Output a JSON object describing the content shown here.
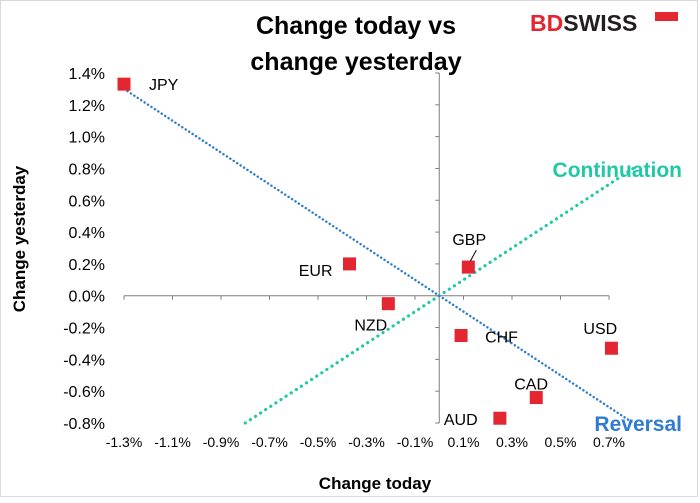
{
  "title_lines": [
    "Change today vs",
    "change yesterday"
  ],
  "logo": {
    "text_a": "BD",
    "text_b": "SWISS",
    "color_a": "#e3262f",
    "color_b": "#231f20"
  },
  "colors": {
    "marker": "#e3262f",
    "continuation": "#20c9a6",
    "reversal": "#2e7bd0"
  },
  "chart_data": {
    "type": "scatter",
    "title": "Change today vs change yesterday",
    "xlabel": "Change today",
    "ylabel": "Change yesterday",
    "xlim": [
      -1.3,
      0.8
    ],
    "ylim": [
      -0.8,
      1.4
    ],
    "x_ticks": [
      "-1.3%",
      "-1.1%",
      "-0.9%",
      "-0.7%",
      "-0.5%",
      "-0.3%",
      "-0.1%",
      "0.1%",
      "0.3%",
      "0.5%",
      "0.7%"
    ],
    "x_tick_values": [
      -1.3,
      -1.1,
      -0.9,
      -0.7,
      -0.5,
      -0.3,
      -0.1,
      0.1,
      0.3,
      0.5,
      0.7
    ],
    "y_ticks": [
      "1.4%",
      "1.2%",
      "1.0%",
      "0.8%",
      "0.6%",
      "0.4%",
      "0.2%",
      "0.0%",
      "-0.2%",
      "-0.4%",
      "-0.6%",
      "-0.8%"
    ],
    "y_tick_values": [
      1.4,
      1.2,
      1.0,
      0.8,
      0.6,
      0.4,
      0.2,
      0.0,
      -0.2,
      -0.4,
      -0.6,
      -0.8
    ],
    "points": [
      {
        "label": "JPY",
        "x": -1.3,
        "y": 1.33
      },
      {
        "label": "EUR",
        "x": -0.37,
        "y": 0.2
      },
      {
        "label": "NZD",
        "x": -0.21,
        "y": -0.05
      },
      {
        "label": "GBP",
        "x": 0.12,
        "y": 0.18
      },
      {
        "label": "CHF",
        "x": 0.09,
        "y": -0.25
      },
      {
        "label": "USD",
        "x": 0.71,
        "y": -0.33
      },
      {
        "label": "CAD",
        "x": 0.4,
        "y": -0.64
      },
      {
        "label": "AUD",
        "x": 0.25,
        "y": -0.77
      }
    ],
    "lines": [
      {
        "name": "Continuation",
        "from": [
          -0.8,
          -0.8
        ],
        "to": [
          0.8,
          0.8
        ]
      },
      {
        "name": "Reversal",
        "from": [
          -1.3,
          1.3
        ],
        "to": [
          0.8,
          -0.8
        ]
      }
    ],
    "grid": false
  }
}
